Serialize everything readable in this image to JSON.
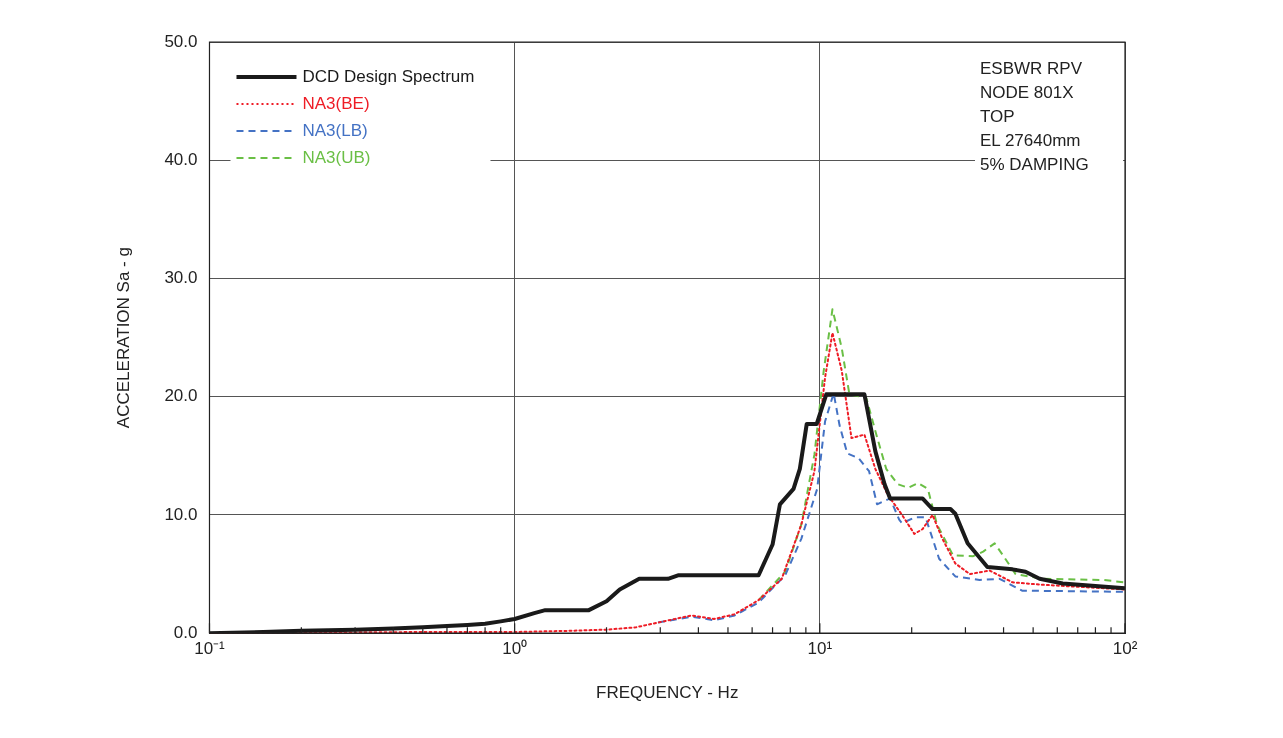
{
  "chart_data": {
    "type": "line",
    "xlabel": "FREQUENCY - Hz",
    "ylabel": "ACCELERATION Sa - g",
    "annotations": [
      "ESBWR RPV",
      "NODE 801X",
      "TOP",
      "EL 27640mm",
      "5% DAMPING"
    ],
    "xlim": [
      0.1,
      100
    ],
    "log": "x",
    "xticks": [
      {
        "value": 0.1,
        "label": "10⁻¹"
      },
      {
        "value": 0.2,
        "label": null
      },
      {
        "value": 0.3,
        "label": null
      },
      {
        "value": 0.4,
        "label": null
      },
      {
        "value": 0.5,
        "label": null
      },
      {
        "value": 0.6,
        "label": null
      },
      {
        "value": 0.7,
        "label": null
      },
      {
        "value": 0.8,
        "label": null
      },
      {
        "value": 0.9,
        "label": null
      },
      {
        "value": 1,
        "label": "10⁰"
      },
      {
        "value": 2,
        "label": null
      },
      {
        "value": 3,
        "label": null
      },
      {
        "value": 4,
        "label": null
      },
      {
        "value": 5,
        "label": null
      },
      {
        "value": 6,
        "label": null
      },
      {
        "value": 7,
        "label": null
      },
      {
        "value": 8,
        "label": null
      },
      {
        "value": 9,
        "label": null
      },
      {
        "value": 10,
        "label": "10¹"
      },
      {
        "value": 20,
        "label": null
      },
      {
        "value": 30,
        "label": null
      },
      {
        "value": 40,
        "label": null
      },
      {
        "value": 50,
        "label": null
      },
      {
        "value": 60,
        "label": null
      },
      {
        "value": 70,
        "label": null
      },
      {
        "value": 80,
        "label": null
      },
      {
        "value": 90,
        "label": null
      },
      {
        "value": 100,
        "label": "10²"
      }
    ],
    "ylim": [
      0,
      50
    ],
    "yticks": [
      {
        "value": 0,
        "label": "0.0"
      },
      {
        "value": 10,
        "label": "10.0"
      },
      {
        "value": 20,
        "label": "20.0"
      },
      {
        "value": 30,
        "label": "30.0"
      },
      {
        "value": 40,
        "label": "40.0"
      },
      {
        "value": 50,
        "label": "50.0"
      }
    ],
    "grid": true,
    "legend": "top left",
    "marker": "none",
    "series": [
      {
        "name": "DCD Design Spectrum",
        "color": "#1a1a1a",
        "line_style": "solid",
        "x": [
          0.1,
          0.15,
          0.2,
          0.3,
          0.4,
          0.5,
          0.6,
          0.7,
          0.8,
          0.9,
          1.0,
          1.16,
          1.26,
          1.75,
          2.0,
          2.21,
          2.56,
          3.18,
          3.43,
          6.3,
          7.0,
          7.4,
          8.2,
          8.6,
          9.06,
          9.77,
          10.5,
          14.0,
          15.2,
          16.3,
          17.0,
          21.7,
          23.4,
          26.8,
          27.8,
          30.5,
          35.4,
          42.8,
          47.2,
          52.5,
          62.5,
          100
        ],
        "values": [
          0.0,
          0.1,
          0.2,
          0.3,
          0.4,
          0.5,
          0.6,
          0.7,
          0.8,
          1.0,
          1.2,
          1.7,
          1.95,
          1.95,
          2.7,
          3.7,
          4.6,
          4.6,
          4.9,
          4.9,
          7.5,
          10.9,
          12.2,
          13.9,
          17.7,
          17.7,
          20.2,
          20.2,
          15.4,
          12.6,
          11.4,
          11.4,
          10.5,
          10.5,
          10.1,
          7.6,
          5.6,
          5.4,
          5.2,
          4.6,
          4.2,
          3.8
        ]
      },
      {
        "name": "NA3(BE)",
        "color": "#ee1c25",
        "line_style": "dotted",
        "x": [
          0.1,
          0.5,
          1.0,
          1.5,
          2.0,
          2.5,
          2.95,
          3.8,
          4.5,
          5.26,
          6.3,
          7.5,
          8.7,
          9.6,
          10.4,
          11.0,
          11.8,
          12.7,
          14.0,
          15.2,
          16.7,
          18.6,
          20.4,
          21.7,
          23.4,
          25.2,
          27.8,
          31,
          36,
          42.8,
          53.5,
          100
        ],
        "values": [
          0.0,
          0.1,
          0.1,
          0.2,
          0.3,
          0.5,
          0.9,
          1.5,
          1.2,
          1.6,
          2.8,
          4.6,
          9.2,
          13.7,
          21.6,
          25.4,
          22.2,
          16.5,
          16.8,
          13.9,
          11.7,
          10.0,
          8.4,
          8.8,
          10.0,
          8.0,
          5.9,
          5.0,
          5.3,
          4.3,
          4.1,
          3.7
        ]
      },
      {
        "name": "NA3(LB)",
        "color": "#4472c4",
        "line_style": "dashed",
        "x": [
          2.95,
          3.8,
          4.5,
          5.26,
          6.3,
          7.7,
          8.7,
          9.8,
          10.4,
          11.1,
          11.6,
          12.3,
          13.4,
          14.5,
          15.4,
          17.0,
          18.2,
          18.6,
          20.5,
          22.2,
          24.6,
          27.8,
          33.4,
          38.8,
          46,
          100
        ],
        "values": [
          0.9,
          1.4,
          1.1,
          1.5,
          2.6,
          4.9,
          8.0,
          12.2,
          17.9,
          20.3,
          17.6,
          15.2,
          14.8,
          13.7,
          10.9,
          11.4,
          9.6,
          9.3,
          9.8,
          9.8,
          6.3,
          4.8,
          4.5,
          4.6,
          3.6,
          3.5
        ]
      },
      {
        "name": "NA3(UB)",
        "color": "#6abf45",
        "line_style": "dashed",
        "x": [
          6.3,
          7.7,
          8.7,
          9.6,
          10.3,
          11.0,
          11.8,
          12.5,
          14.2,
          15.2,
          16.5,
          18,
          19.5,
          21.0,
          22.6,
          24.2,
          27.3,
          31.7,
          34.3,
          37.4,
          39.8,
          43.8,
          53.5,
          85,
          100
        ],
        "values": [
          2.8,
          5.2,
          9.2,
          15.1,
          22.2,
          27.4,
          24.1,
          20.2,
          19.9,
          17.1,
          13.9,
          12.6,
          12.3,
          12.7,
          12.2,
          9.2,
          6.6,
          6.5,
          6.9,
          7.6,
          6.6,
          5.0,
          4.6,
          4.5,
          4.3
        ]
      }
    ]
  }
}
